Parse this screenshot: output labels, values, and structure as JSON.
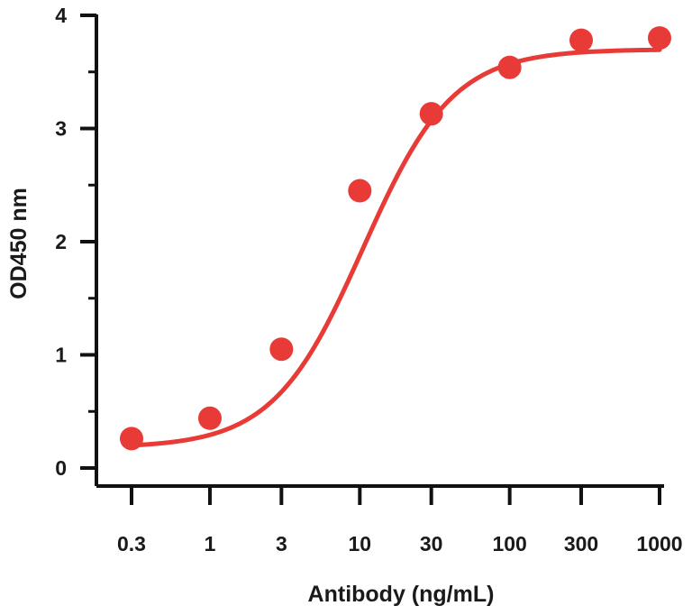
{
  "chart_data": {
    "type": "scatter",
    "title": "",
    "xlabel": "Antibody (ng/mL)",
    "ylabel": "OD450 nm",
    "x_scale": "log",
    "x_ticks": [
      "0.3",
      "1",
      "3",
      "10",
      "30",
      "100",
      "300",
      "1000"
    ],
    "y_ticks": [
      "0",
      "1",
      "2",
      "3",
      "4"
    ],
    "xlim": [
      0.3,
      1000
    ],
    "ylim": [
      0,
      4
    ],
    "grid": false,
    "legend": "none",
    "color": "#e83a36",
    "series": [
      {
        "x": [
          0.3,
          1,
          3,
          10,
          30,
          100,
          300,
          1000
        ],
        "y": [
          0.26,
          0.44,
          1.05,
          2.45,
          3.13,
          3.54,
          3.78,
          3.8
        ]
      }
    ],
    "fit_curve": {
      "model": "sigmoidal (4PL)",
      "bottom": 0.18,
      "top": 3.7,
      "ec50": 10.5,
      "hill": 1.45
    }
  }
}
